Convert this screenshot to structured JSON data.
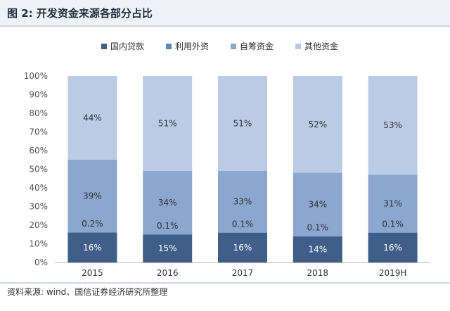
{
  "figure": {
    "title": "图 2:  开发资金来源各部分占比",
    "source": "资料来源: wind、国信证券经济研究所整理"
  },
  "chart_data": {
    "type": "bar",
    "stacked": true,
    "categories": [
      "2015",
      "2016",
      "2017",
      "2018",
      "2019H"
    ],
    "series": [
      {
        "name": "国内贷款",
        "color": "#3f5f8a",
        "values": [
          16,
          15,
          16,
          14,
          16
        ],
        "labels": [
          "16%",
          "15%",
          "16%",
          "14%",
          "16%"
        ]
      },
      {
        "name": "利用外资",
        "color": "#5f86bd",
        "values": [
          0.2,
          0.1,
          0.1,
          0.1,
          0.1
        ],
        "labels": [
          "0.2%",
          "0.1%",
          "0.1%",
          "0.1%",
          "0.1%"
        ]
      },
      {
        "name": "自筹资金",
        "color": "#8ba6cf",
        "values": [
          39,
          34,
          33,
          34,
          31
        ],
        "labels": [
          "39%",
          "34%",
          "33%",
          "34%",
          "31%"
        ]
      },
      {
        "name": "其他资金",
        "color": "#bccbe5",
        "values": [
          44,
          51,
          51,
          52,
          53
        ],
        "labels": [
          "44%",
          "51%",
          "51%",
          "52%",
          "53%"
        ]
      }
    ],
    "ylim": [
      0,
      100
    ],
    "yticks": [
      "0%",
      "10%",
      "20%",
      "30%",
      "40%",
      "50%",
      "60%",
      "70%",
      "80%",
      "90%",
      "100%"
    ],
    "legend": "top-center",
    "grid": false
  }
}
